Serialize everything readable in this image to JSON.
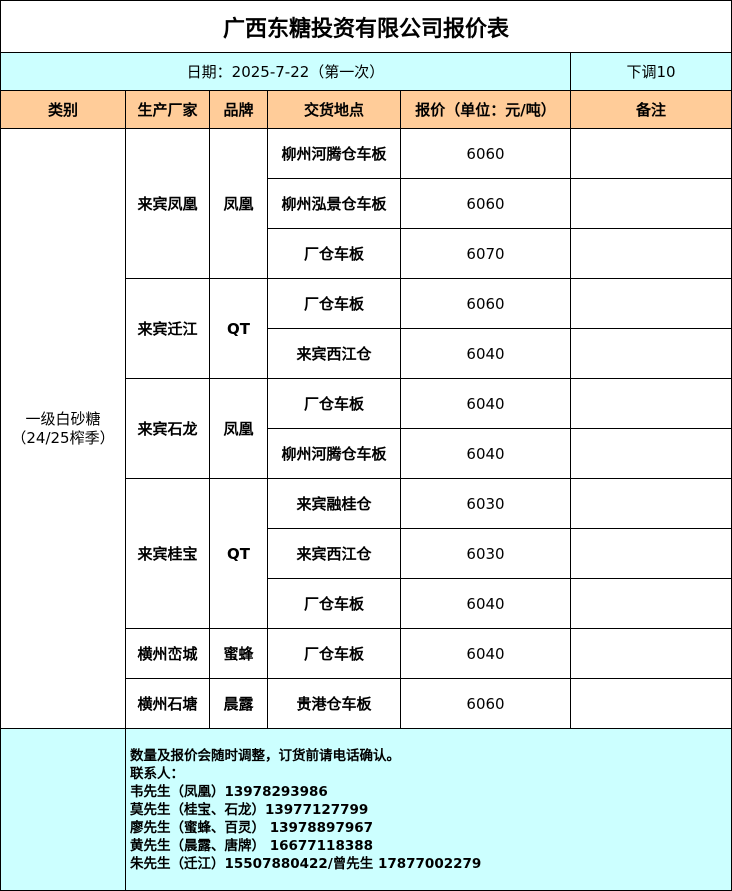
{
  "title": "广西东糖投资有限公司报价表",
  "date_line": "日期：2025-7-22（第一次）",
  "adjustment": "下调10",
  "headers": [
    "类别",
    "生产厂家",
    "品牌",
    "交货地点",
    "报价（单位：元/吨）",
    "备注"
  ],
  "category": "一级白砂糖\n（24/25榨季）",
  "groups": [
    {
      "producer": "来宾凤凰",
      "brand": "凤凰",
      "rows": [
        {
          "location": "柳州河腾仓车板",
          "price": "6060",
          "note": ""
        },
        {
          "location": "柳州泓景仓车板",
          "price": "6060",
          "note": ""
        },
        {
          "location": "厂仓车板",
          "price": "6070",
          "note": ""
        }
      ]
    },
    {
      "producer": "来宾迁江",
      "brand": "QT",
      "rows": [
        {
          "location": "厂仓车板",
          "price": "6060",
          "note": ""
        },
        {
          "location": "来宾西江仓",
          "price": "6040",
          "note": ""
        }
      ]
    },
    {
      "producer": "来宾石龙",
      "brand": "凤凰",
      "rows": [
        {
          "location": "厂仓车板",
          "price": "6040",
          "note": ""
        },
        {
          "location": "柳州河腾仓车板",
          "price": "6040",
          "note": ""
        }
      ]
    },
    {
      "producer": "来宾桂宝",
      "brand": "QT",
      "rows": [
        {
          "location": "来宾融桂仓",
          "price": "6030",
          "note": ""
        },
        {
          "location": "来宾西江仓",
          "price": "6030",
          "note": ""
        },
        {
          "location": "厂仓车板",
          "price": "6040",
          "note": ""
        }
      ]
    },
    {
      "producer": "横州峦城",
      "brand": "蜜蜂",
      "rows": [
        {
          "location": "厂仓车板",
          "price": "6040",
          "note": ""
        }
      ]
    },
    {
      "producer": "横州石塘",
      "brand": "晨露",
      "rows": [
        {
          "location": "贵港仓车板",
          "price": "6060",
          "note": ""
        }
      ]
    }
  ],
  "footer_lines": [
    "数量及报价会随时调整，订货前请电话确认。",
    "联系人：",
    "韦先生（凤凰）13978293986",
    "莫先生（桂宝、石龙）13977127799",
    "廖先生（蜜蜂、百灵） 13978897967",
    "黄先生（晨露、唐牌） 16677118388",
    "朱先生（迁江）15507880422/曾先生 17877002279"
  ],
  "colors": {
    "date_row": "#ccffff",
    "header_row": "#ffcc99",
    "footer": "#ccffff"
  }
}
